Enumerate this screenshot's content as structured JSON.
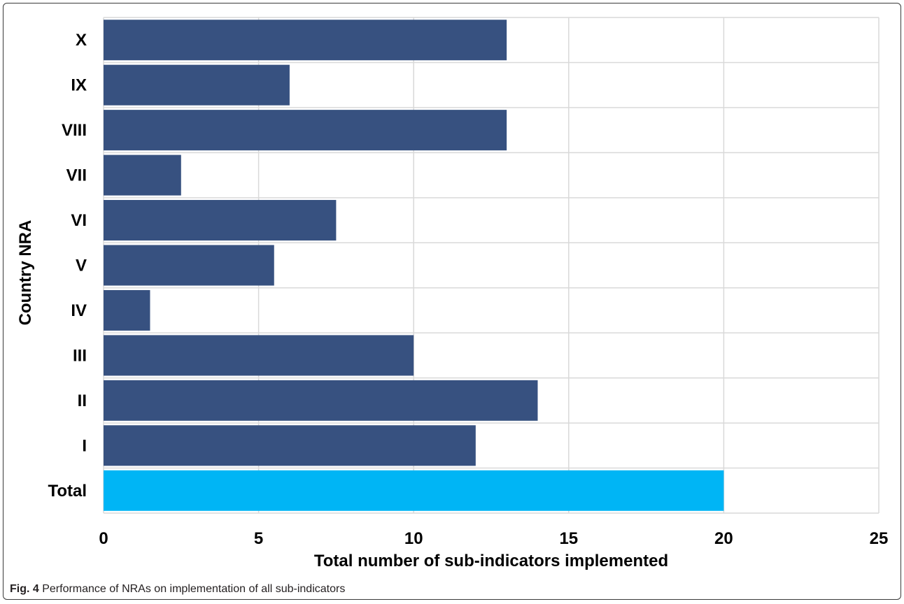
{
  "chart_data": {
    "type": "bar",
    "orientation": "horizontal",
    "categories": [
      "X",
      "IX",
      "VIII",
      "VII",
      "VI",
      "V",
      "IV",
      "III",
      "II",
      "I",
      "Total"
    ],
    "values": [
      13,
      6,
      13,
      2.5,
      7.5,
      5.5,
      1.5,
      10,
      14,
      12,
      20
    ],
    "xlabel": "Total number of sub-indicators implemented",
    "ylabel": "Country NRA",
    "xlim": [
      0,
      25
    ],
    "xticks": [
      "0",
      "5",
      "10",
      "15",
      "20",
      "25"
    ],
    "grid": true,
    "legend": "none",
    "colors": {
      "bar": "#375180",
      "total_bar": "#00b5f5",
      "grid": "#d9d9d9",
      "text": "#000000"
    }
  },
  "caption": {
    "label": "Fig. 4",
    "text": "Performance of NRAs on implementation of all sub-indicators"
  }
}
